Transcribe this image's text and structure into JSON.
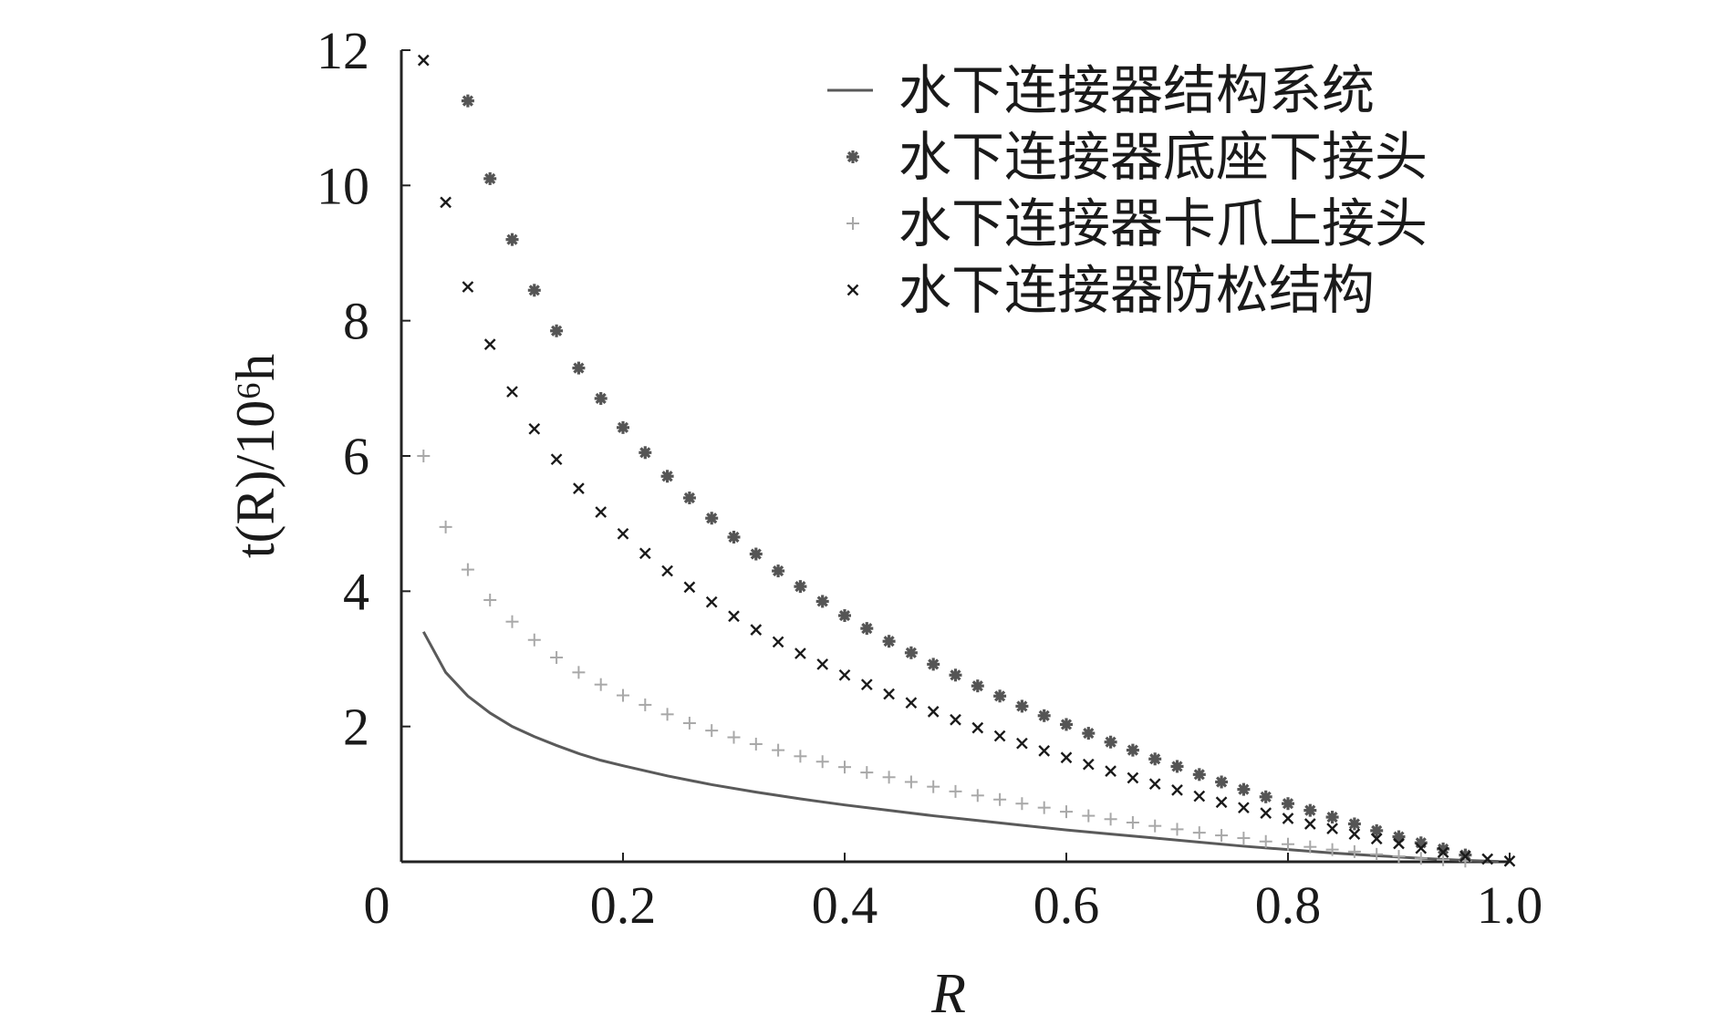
{
  "chart_data": {
    "type": "scatter",
    "xlabel": "R",
    "ylabel": "t(R)/10⁶h",
    "xlim": [
      0,
      1.0
    ],
    "ylim": [
      0,
      12
    ],
    "xticks": [
      "0",
      "0.2",
      "0.4",
      "0.6",
      "0.8",
      "1.0"
    ],
    "yticks": [
      "2",
      "4",
      "6",
      "8",
      "10",
      "12"
    ],
    "legend_position": "top-right",
    "grid": false,
    "series": [
      {
        "name": "水下连接器结构系统",
        "style": "line",
        "color": "#5a5a5a",
        "x": [
          0.02,
          0.04,
          0.06,
          0.08,
          0.1,
          0.12,
          0.14,
          0.16,
          0.18,
          0.2,
          0.24,
          0.28,
          0.32,
          0.36,
          0.4,
          0.44,
          0.48,
          0.52,
          0.56,
          0.6,
          0.64,
          0.68,
          0.72,
          0.76,
          0.8,
          0.84,
          0.88,
          0.92,
          0.96,
          0.99
        ],
        "values": [
          3.4,
          2.8,
          2.45,
          2.2,
          2.0,
          1.85,
          1.72,
          1.6,
          1.5,
          1.42,
          1.27,
          1.14,
          1.03,
          0.93,
          0.84,
          0.76,
          0.68,
          0.61,
          0.54,
          0.47,
          0.41,
          0.35,
          0.29,
          0.23,
          0.18,
          0.13,
          0.09,
          0.05,
          0.02,
          0.005
        ]
      },
      {
        "name": "水下连接器底座下接头",
        "style": "asterisk",
        "color": "#555555",
        "x": [
          0.06,
          0.08,
          0.1,
          0.12,
          0.14,
          0.16,
          0.18,
          0.2,
          0.22,
          0.24,
          0.26,
          0.28,
          0.3,
          0.32,
          0.34,
          0.36,
          0.38,
          0.4,
          0.42,
          0.44,
          0.46,
          0.48,
          0.5,
          0.52,
          0.54,
          0.56,
          0.58,
          0.6,
          0.62,
          0.64,
          0.66,
          0.68,
          0.7,
          0.72,
          0.74,
          0.76,
          0.78,
          0.8,
          0.82,
          0.84,
          0.86,
          0.88,
          0.9,
          0.92,
          0.94,
          0.96
        ],
        "values": [
          11.25,
          10.1,
          9.2,
          8.45,
          7.85,
          7.3,
          6.85,
          6.42,
          6.05,
          5.7,
          5.38,
          5.08,
          4.8,
          4.55,
          4.3,
          4.07,
          3.85,
          3.64,
          3.45,
          3.26,
          3.09,
          2.92,
          2.76,
          2.6,
          2.45,
          2.3,
          2.16,
          2.03,
          1.9,
          1.77,
          1.65,
          1.52,
          1.41,
          1.29,
          1.18,
          1.07,
          0.96,
          0.86,
          0.76,
          0.66,
          0.56,
          0.46,
          0.37,
          0.28,
          0.19,
          0.1
        ]
      },
      {
        "name": "水下连接器卡爪上接头",
        "style": "plus",
        "color": "#a8a8a8",
        "x": [
          0.02,
          0.04,
          0.06,
          0.08,
          0.1,
          0.12,
          0.14,
          0.16,
          0.18,
          0.2,
          0.22,
          0.24,
          0.26,
          0.28,
          0.3,
          0.32,
          0.34,
          0.36,
          0.38,
          0.4,
          0.42,
          0.44,
          0.46,
          0.48,
          0.5,
          0.52,
          0.54,
          0.56,
          0.58,
          0.6,
          0.62,
          0.64,
          0.66,
          0.68,
          0.7,
          0.72,
          0.74,
          0.76,
          0.78,
          0.8,
          0.82,
          0.84,
          0.86,
          0.88,
          0.9,
          0.92,
          0.94,
          0.96
        ],
        "values": [
          6.0,
          4.95,
          4.32,
          3.87,
          3.55,
          3.28,
          3.02,
          2.8,
          2.62,
          2.46,
          2.32,
          2.18,
          2.05,
          1.94,
          1.84,
          1.74,
          1.65,
          1.56,
          1.48,
          1.4,
          1.32,
          1.25,
          1.18,
          1.11,
          1.04,
          0.98,
          0.92,
          0.86,
          0.8,
          0.74,
          0.68,
          0.63,
          0.58,
          0.53,
          0.48,
          0.43,
          0.39,
          0.35,
          0.3,
          0.26,
          0.22,
          0.18,
          0.15,
          0.11,
          0.08,
          0.05,
          0.03,
          0.01
        ]
      },
      {
        "name": "水下连接器防松结构",
        "style": "cross",
        "color": "#1a1a1a",
        "x": [
          0.02,
          0.04,
          0.06,
          0.08,
          0.1,
          0.12,
          0.14,
          0.16,
          0.18,
          0.2,
          0.22,
          0.24,
          0.26,
          0.28,
          0.3,
          0.32,
          0.34,
          0.36,
          0.38,
          0.4,
          0.42,
          0.44,
          0.46,
          0.48,
          0.5,
          0.52,
          0.54,
          0.56,
          0.58,
          0.6,
          0.62,
          0.64,
          0.66,
          0.68,
          0.7,
          0.72,
          0.74,
          0.76,
          0.78,
          0.8,
          0.82,
          0.84,
          0.86,
          0.88,
          0.9,
          0.92,
          0.94,
          0.96,
          0.98,
          1.0
        ],
        "values": [
          11.85,
          9.75,
          8.5,
          7.65,
          6.95,
          6.4,
          5.95,
          5.52,
          5.17,
          4.85,
          4.56,
          4.3,
          4.06,
          3.84,
          3.63,
          3.43,
          3.25,
          3.08,
          2.92,
          2.76,
          2.62,
          2.48,
          2.35,
          2.22,
          2.1,
          1.98,
          1.86,
          1.75,
          1.64,
          1.54,
          1.44,
          1.34,
          1.24,
          1.15,
          1.06,
          0.97,
          0.88,
          0.8,
          0.72,
          0.64,
          0.56,
          0.49,
          0.41,
          0.34,
          0.27,
          0.2,
          0.14,
          0.08,
          0.04,
          0.01
        ]
      }
    ]
  }
}
